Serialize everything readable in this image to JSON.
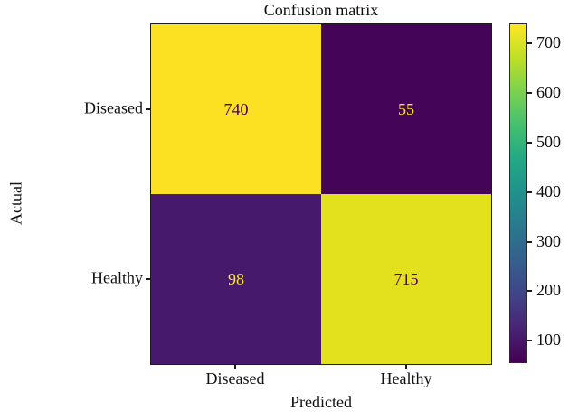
{
  "chart_data": {
    "type": "heatmap",
    "title": "Confusion matrix",
    "xlabel": "Predicted",
    "ylabel": "Actual",
    "x_categories": [
      "Diseased",
      "Healthy"
    ],
    "y_categories": [
      "Diseased",
      "Healthy"
    ],
    "matrix": [
      [
        740,
        55
      ],
      [
        98,
        715
      ]
    ],
    "cells": [
      {
        "actual": "Diseased",
        "predicted": "Diseased",
        "value": 740,
        "bg": "#fbe122",
        "text_color": "#440154"
      },
      {
        "actual": "Diseased",
        "predicted": "Healthy",
        "value": 55,
        "bg": "#440457",
        "text_color": "#fde725"
      },
      {
        "actual": "Healthy",
        "predicted": "Diseased",
        "value": 98,
        "bg": "#46196c",
        "text_color": "#fde725"
      },
      {
        "actual": "Healthy",
        "predicted": "Healthy",
        "value": 715,
        "bg": "#e3e11e",
        "text_color": "#440154"
      }
    ],
    "colorbar": {
      "colormap": "viridis",
      "ticks": [
        700,
        600,
        500,
        400,
        300,
        200,
        100
      ],
      "gradient_stops": [
        "#440154",
        "#482475",
        "#414487",
        "#355f8d",
        "#2a788e",
        "#21918c",
        "#22a884",
        "#44bf70",
        "#7ad151",
        "#bddf26",
        "#fde725"
      ]
    },
    "legend_position": "right-colorbar",
    "grid": false
  }
}
